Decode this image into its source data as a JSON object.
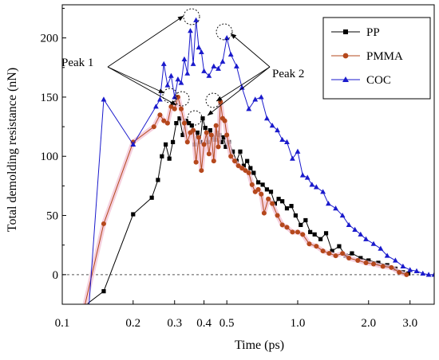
{
  "chart_data": {
    "type": "line",
    "xlabel": "Time (ps)",
    "ylabel": "Total demolding resistance (nN)",
    "x_scale": "log",
    "xlim": [
      0.1,
      3.8
    ],
    "ylim": [
      -25,
      228
    ],
    "x_ticks": [
      {
        "value": 0.1,
        "label": "0.1"
      },
      {
        "value": 0.2,
        "label": "0.2"
      },
      {
        "value": 0.3,
        "label": "0.3"
      },
      {
        "value": 0.4,
        "label": "0.4"
      },
      {
        "value": 0.5,
        "label": "0.5"
      },
      {
        "value": 1.0,
        "label": "1.0"
      },
      {
        "value": 2.0,
        "label": "2.0"
      },
      {
        "value": 3.0,
        "label": "3.0"
      }
    ],
    "y_ticks": [
      {
        "value": 0,
        "label": "0"
      },
      {
        "value": 50,
        "label": "50"
      },
      {
        "value": 100,
        "label": "100"
      },
      {
        "value": 150,
        "label": "150"
      },
      {
        "value": 200,
        "label": "200"
      }
    ],
    "legend_position": "top-right",
    "zero_reference_line": true,
    "series": [
      {
        "name": "PP",
        "color": "#000000",
        "marker": "square",
        "points": [
          [
            0.127,
            -25
          ],
          [
            0.15,
            -14
          ],
          [
            0.2,
            51
          ],
          [
            0.24,
            65
          ],
          [
            0.255,
            80
          ],
          [
            0.265,
            100
          ],
          [
            0.275,
            110
          ],
          [
            0.285,
            98
          ],
          [
            0.295,
            112
          ],
          [
            0.305,
            128
          ],
          [
            0.315,
            132
          ],
          [
            0.325,
            118
          ],
          [
            0.335,
            130
          ],
          [
            0.345,
            128
          ],
          [
            0.355,
            126
          ],
          [
            0.365,
            110
          ],
          [
            0.375,
            120
          ],
          [
            0.385,
            112
          ],
          [
            0.395,
            132
          ],
          [
            0.405,
            124
          ],
          [
            0.415,
            112
          ],
          [
            0.425,
            122
          ],
          [
            0.435,
            116
          ],
          [
            0.445,
            114
          ],
          [
            0.455,
            120
          ],
          [
            0.465,
            118
          ],
          [
            0.475,
            112
          ],
          [
            0.485,
            116
          ],
          [
            0.495,
            108
          ],
          [
            0.51,
            112
          ],
          [
            0.53,
            104
          ],
          [
            0.55,
            96
          ],
          [
            0.57,
            104
          ],
          [
            0.59,
            92
          ],
          [
            0.61,
            96
          ],
          [
            0.63,
            90
          ],
          [
            0.65,
            86
          ],
          [
            0.68,
            78
          ],
          [
            0.71,
            76
          ],
          [
            0.74,
            72
          ],
          [
            0.77,
            70
          ],
          [
            0.8,
            60
          ],
          [
            0.83,
            64
          ],
          [
            0.86,
            62
          ],
          [
            0.9,
            56
          ],
          [
            0.94,
            58
          ],
          [
            0.98,
            50
          ],
          [
            1.03,
            42
          ],
          [
            1.08,
            46
          ],
          [
            1.13,
            36
          ],
          [
            1.18,
            34
          ],
          [
            1.25,
            30
          ],
          [
            1.32,
            35
          ],
          [
            1.4,
            20
          ],
          [
            1.5,
            24
          ],
          [
            1.6,
            16
          ],
          [
            1.7,
            18
          ],
          [
            1.85,
            14
          ],
          [
            2.0,
            12
          ],
          [
            2.2,
            10
          ],
          [
            2.4,
            8
          ],
          [
            2.6,
            5
          ],
          [
            2.8,
            2
          ],
          [
            2.95,
            1
          ]
        ]
      },
      {
        "name": "PMMA",
        "color": "#b5481c",
        "marker": "circle",
        "points": [
          [
            0.125,
            -25
          ],
          [
            0.15,
            43
          ],
          [
            0.2,
            112
          ],
          [
            0.245,
            125
          ],
          [
            0.26,
            135
          ],
          [
            0.27,
            130
          ],
          [
            0.28,
            128
          ],
          [
            0.29,
            142
          ],
          [
            0.3,
            140
          ],
          [
            0.31,
            150
          ],
          [
            0.32,
            140
          ],
          [
            0.33,
            128
          ],
          [
            0.34,
            112
          ],
          [
            0.35,
            120
          ],
          [
            0.36,
            122
          ],
          [
            0.37,
            95
          ],
          [
            0.38,
            116
          ],
          [
            0.39,
            88
          ],
          [
            0.4,
            110
          ],
          [
            0.41,
            120
          ],
          [
            0.42,
            102
          ],
          [
            0.43,
            118
          ],
          [
            0.44,
            96
          ],
          [
            0.45,
            126
          ],
          [
            0.46,
            108
          ],
          [
            0.47,
            146
          ],
          [
            0.48,
            132
          ],
          [
            0.49,
            130
          ],
          [
            0.5,
            118
          ],
          [
            0.52,
            100
          ],
          [
            0.54,
            96
          ],
          [
            0.56,
            92
          ],
          [
            0.58,
            90
          ],
          [
            0.6,
            88
          ],
          [
            0.62,
            86
          ],
          [
            0.64,
            76
          ],
          [
            0.66,
            70
          ],
          [
            0.68,
            72
          ],
          [
            0.7,
            68
          ],
          [
            0.72,
            52
          ],
          [
            0.75,
            64
          ],
          [
            0.78,
            60
          ],
          [
            0.82,
            50
          ],
          [
            0.86,
            42
          ],
          [
            0.9,
            40
          ],
          [
            0.95,
            36
          ],
          [
            1.0,
            36
          ],
          [
            1.05,
            34
          ],
          [
            1.12,
            26
          ],
          [
            1.2,
            24
          ],
          [
            1.28,
            20
          ],
          [
            1.36,
            18
          ],
          [
            1.45,
            16
          ],
          [
            1.55,
            18
          ],
          [
            1.65,
            14
          ],
          [
            1.8,
            12
          ],
          [
            1.95,
            10
          ],
          [
            2.1,
            9
          ],
          [
            2.3,
            7
          ],
          [
            2.5,
            6
          ],
          [
            2.7,
            2
          ],
          [
            2.9,
            0
          ]
        ]
      },
      {
        "name": "COC",
        "color": "#1a1acc",
        "marker": "triangle",
        "points": [
          [
            0.13,
            -25
          ],
          [
            0.15,
            148
          ],
          [
            0.2,
            110
          ],
          [
            0.25,
            142
          ],
          [
            0.26,
            148
          ],
          [
            0.27,
            178
          ],
          [
            0.28,
            160
          ],
          [
            0.29,
            168
          ],
          [
            0.3,
            150
          ],
          [
            0.31,
            165
          ],
          [
            0.32,
            162
          ],
          [
            0.33,
            182
          ],
          [
            0.34,
            170
          ],
          [
            0.35,
            206
          ],
          [
            0.36,
            178
          ],
          [
            0.37,
            215
          ],
          [
            0.38,
            192
          ],
          [
            0.39,
            188
          ],
          [
            0.4,
            172
          ],
          [
            0.42,
            168
          ],
          [
            0.44,
            176
          ],
          [
            0.46,
            174
          ],
          [
            0.48,
            180
          ],
          [
            0.5,
            200
          ],
          [
            0.52,
            186
          ],
          [
            0.55,
            176
          ],
          [
            0.58,
            158
          ],
          [
            0.62,
            140
          ],
          [
            0.66,
            148
          ],
          [
            0.7,
            150
          ],
          [
            0.74,
            132
          ],
          [
            0.78,
            126
          ],
          [
            0.82,
            122
          ],
          [
            0.86,
            114
          ],
          [
            0.9,
            112
          ],
          [
            0.95,
            98
          ],
          [
            1.0,
            104
          ],
          [
            1.05,
            84
          ],
          [
            1.1,
            82
          ],
          [
            1.15,
            76
          ],
          [
            1.2,
            74
          ],
          [
            1.28,
            70
          ],
          [
            1.35,
            60
          ],
          [
            1.45,
            56
          ],
          [
            1.55,
            50
          ],
          [
            1.65,
            42
          ],
          [
            1.75,
            38
          ],
          [
            1.85,
            34
          ],
          [
            1.95,
            30
          ],
          [
            2.1,
            26
          ],
          [
            2.25,
            22
          ],
          [
            2.4,
            16
          ],
          [
            2.6,
            12
          ],
          [
            2.8,
            7
          ],
          [
            3.0,
            4
          ],
          [
            3.2,
            3
          ],
          [
            3.4,
            1
          ],
          [
            3.6,
            0
          ],
          [
            3.8,
            0
          ]
        ]
      }
    ],
    "annotations": [
      {
        "text": "Peak 1"
      },
      {
        "text": "Peak 2"
      }
    ]
  }
}
